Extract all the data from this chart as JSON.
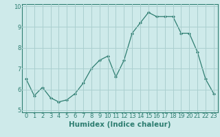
{
  "x": [
    0,
    1,
    2,
    3,
    4,
    5,
    6,
    7,
    8,
    9,
    10,
    11,
    12,
    13,
    14,
    15,
    16,
    17,
    18,
    19,
    20,
    21,
    22,
    23
  ],
  "y": [
    6.5,
    5.7,
    6.1,
    5.6,
    5.4,
    5.5,
    5.8,
    6.3,
    7.0,
    7.4,
    7.6,
    6.6,
    7.4,
    8.7,
    9.2,
    9.7,
    9.5,
    9.5,
    9.5,
    8.7,
    8.7,
    7.8,
    6.5,
    5.8
  ],
  "line_color": "#2d7d70",
  "marker": "D",
  "marker_size": 2.0,
  "bg_color": "#ceeaea",
  "grid_color": "#aacfcf",
  "xlabel": "Humidex (Indice chaleur)",
  "xlim": [
    -0.5,
    23.5
  ],
  "ylim": [
    4.9,
    10.1
  ],
  "yticks": [
    5,
    6,
    7,
    8,
    9,
    10
  ],
  "xticks": [
    0,
    1,
    2,
    3,
    4,
    5,
    6,
    7,
    8,
    9,
    10,
    11,
    12,
    13,
    14,
    15,
    16,
    17,
    18,
    19,
    20,
    21,
    22,
    23
  ],
  "tick_fontsize": 6.0,
  "xlabel_fontsize": 7.5,
  "spine_color": "#2d7d70",
  "axis_color": "#2d7d70"
}
